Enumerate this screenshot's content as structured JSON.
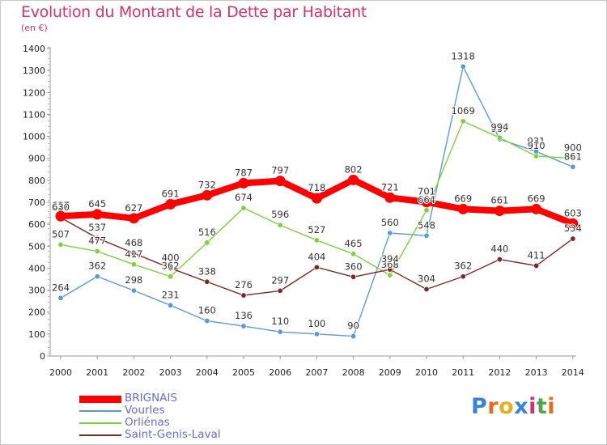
{
  "title": "Evolution du Montant de la Dette par Habitant",
  "subtitle": "(en €)",
  "logo": {
    "text": "Proxiti",
    "letters": [
      "P",
      "r",
      "o",
      "x",
      "i",
      "t",
      "i"
    ],
    "colors": [
      "#3a83d6",
      "#e86a1c",
      "#e8b11c",
      "#3a83d6",
      "#d2336e",
      "#4aa84a",
      "#e86a1c"
    ]
  },
  "chart_data": {
    "type": "line",
    "x": [
      "2000",
      "2001",
      "2002",
      "2003",
      "2004",
      "2005",
      "2006",
      "2007",
      "2008",
      "2009",
      "2010",
      "2011",
      "2012",
      "2013",
      "2014"
    ],
    "ylim": [
      0,
      1400
    ],
    "yticks": [
      "0",
      "100",
      "200",
      "300",
      "400",
      "500",
      "600",
      "700",
      "800",
      "900",
      "1000",
      "1100",
      "1200",
      "1300",
      "1400"
    ],
    "grid": false,
    "legend_position": "bottom-left",
    "series": [
      {
        "name": "BRIGNAIS",
        "color": "#ff0000",
        "values": [
          637,
          645,
          627,
          691,
          732,
          787,
          797,
          718,
          802,
          721,
          701,
          669,
          661,
          669,
          603
        ],
        "labels": [
          "637",
          "645",
          "627",
          "691",
          "732",
          "787",
          "797",
          "718",
          "802",
          "721",
          "701",
          "669",
          "661",
          "669",
          "603"
        ]
      },
      {
        "name": "Vourles",
        "color": "#5b9bd5",
        "values": [
          264,
          362,
          298,
          231,
          160,
          136,
          110,
          100,
          90,
          560,
          548,
          1318,
          987,
          931,
          861
        ],
        "labels": [
          "264",
          "362",
          "298",
          "231",
          "160",
          "136",
          "110",
          "100",
          "90",
          "560",
          "548",
          "1318",
          "987",
          "931",
          "861"
        ]
      },
      {
        "name": "Orliénas",
        "color": "#7fd13b",
        "values": [
          507,
          477,
          417,
          362,
          516,
          674,
          596,
          527,
          465,
          368,
          664,
          1069,
          994,
          910,
          900
        ],
        "labels": [
          "507",
          "477",
          "417",
          "362",
          "516",
          "674",
          "596",
          "527",
          "465",
          "368",
          "664",
          "1069",
          "994",
          "910",
          "900"
        ]
      },
      {
        "name": "Saint-Genis-Laval",
        "color": "#7a2a2a",
        "values": [
          630,
          537,
          468,
          400,
          338,
          276,
          297,
          404,
          360,
          394,
          304,
          362,
          440,
          411,
          534
        ],
        "labels": [
          "630",
          "537",
          "468",
          "400",
          "338",
          "276",
          "297",
          "404",
          "360",
          "394",
          "304",
          "362",
          "440",
          "411",
          "534"
        ]
      }
    ]
  }
}
